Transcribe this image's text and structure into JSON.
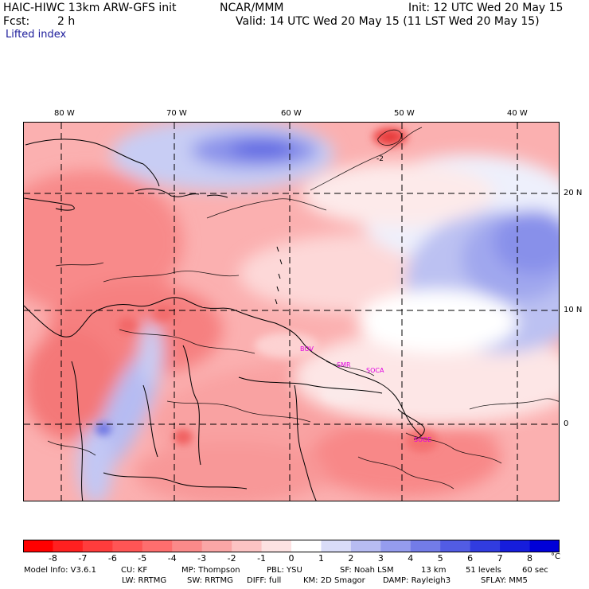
{
  "header": {
    "model": "HAIC-HIWC 13km ARW-GFS init",
    "org": "NCAR/MMM",
    "init": "Init: 12 UTC Wed 20 May 15",
    "fcst_label": "Fcst:",
    "fcst_value": "2 h",
    "valid": "Valid: 14 UTC Wed 20 May 15 (11 LST Wed 20 May 15)",
    "field": "Lifted index"
  },
  "map": {
    "lon_labels": [
      "80 W",
      "70 W",
      "60 W",
      "50 W",
      "40 W"
    ],
    "lat_labels": [
      "20 N",
      "10 N",
      "0"
    ],
    "contour_label": "-2",
    "cities": [
      "BOV",
      "SMR",
      "SOCA",
      "SUGE"
    ]
  },
  "colorbar": {
    "labels": [
      "-8",
      "-7",
      "-6",
      "-5",
      "-4",
      "-3",
      "-2",
      "-1",
      "0",
      "1",
      "2",
      "3",
      "4",
      "5",
      "6",
      "7",
      "8"
    ],
    "unit": "°C",
    "colors": [
      "#ff0000",
      "#ff2020",
      "#ff3c3c",
      "#ff5555",
      "#fe6e6e",
      "#fb8a8a",
      "#faa6a6",
      "#fcc4c4",
      "#fde2e2",
      "#ffffff",
      "#d9dcf8",
      "#b7bcf2",
      "#959cee",
      "#737ce8",
      "#525ce4",
      "#313ce0",
      "#161ddc",
      "#0000d8"
    ]
  },
  "footer": {
    "row1": [
      "Model Info: V3.6.1",
      "CU: KF",
      "MP: Thompson",
      "PBL: YSU",
      "SF: Noah LSM",
      "13 km",
      "51 levels",
      "60 sec"
    ],
    "row2": [
      "LW: RRTMG",
      "SW: RRTMG",
      "DIFF: full",
      "KM: 2D Smagor",
      "DAMP: Rayleigh3",
      "SFLAY: MM5"
    ]
  }
}
